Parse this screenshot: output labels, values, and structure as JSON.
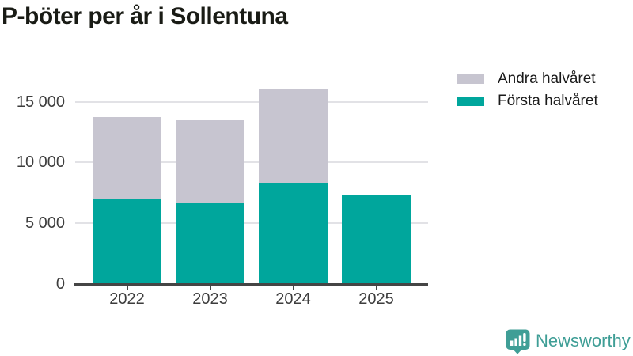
{
  "title": "P-böter per år i Sollentuna",
  "legend": {
    "items": [
      {
        "label": "Andra halvåret",
        "color": "#c7c5d0"
      },
      {
        "label": "Första halvåret",
        "color": "#00a69c"
      }
    ]
  },
  "chart_data": {
    "type": "bar",
    "stacked": true,
    "title": "P-böter per år i Sollentuna",
    "categories": [
      "2022",
      "2023",
      "2024",
      "2025"
    ],
    "series": [
      {
        "name": "Första halvåret",
        "color": "#00a69c",
        "values": [
          7000,
          6650,
          8300,
          7300
        ]
      },
      {
        "name": "Andra halvåret",
        "color": "#c7c5d0",
        "values": [
          6700,
          6850,
          7800,
          0
        ]
      }
    ],
    "xlabel": "",
    "ylabel": "",
    "ylim": [
      0,
      16500
    ],
    "yticks": [
      0,
      5000,
      10000,
      15000
    ],
    "ytick_labels": [
      "0",
      "5 000",
      "10 000",
      "15 000"
    ],
    "grid": true,
    "legend_position": "top-right"
  },
  "colors": {
    "first_half": "#00a69c",
    "second_half": "#c7c5d0",
    "axis": "#454545",
    "gridline": "#e2e2e6",
    "title_text": "#191b15",
    "tick_text": "#3d3d3d",
    "brand": "#3f9e96"
  },
  "branding": {
    "name": "Newsworthy"
  }
}
